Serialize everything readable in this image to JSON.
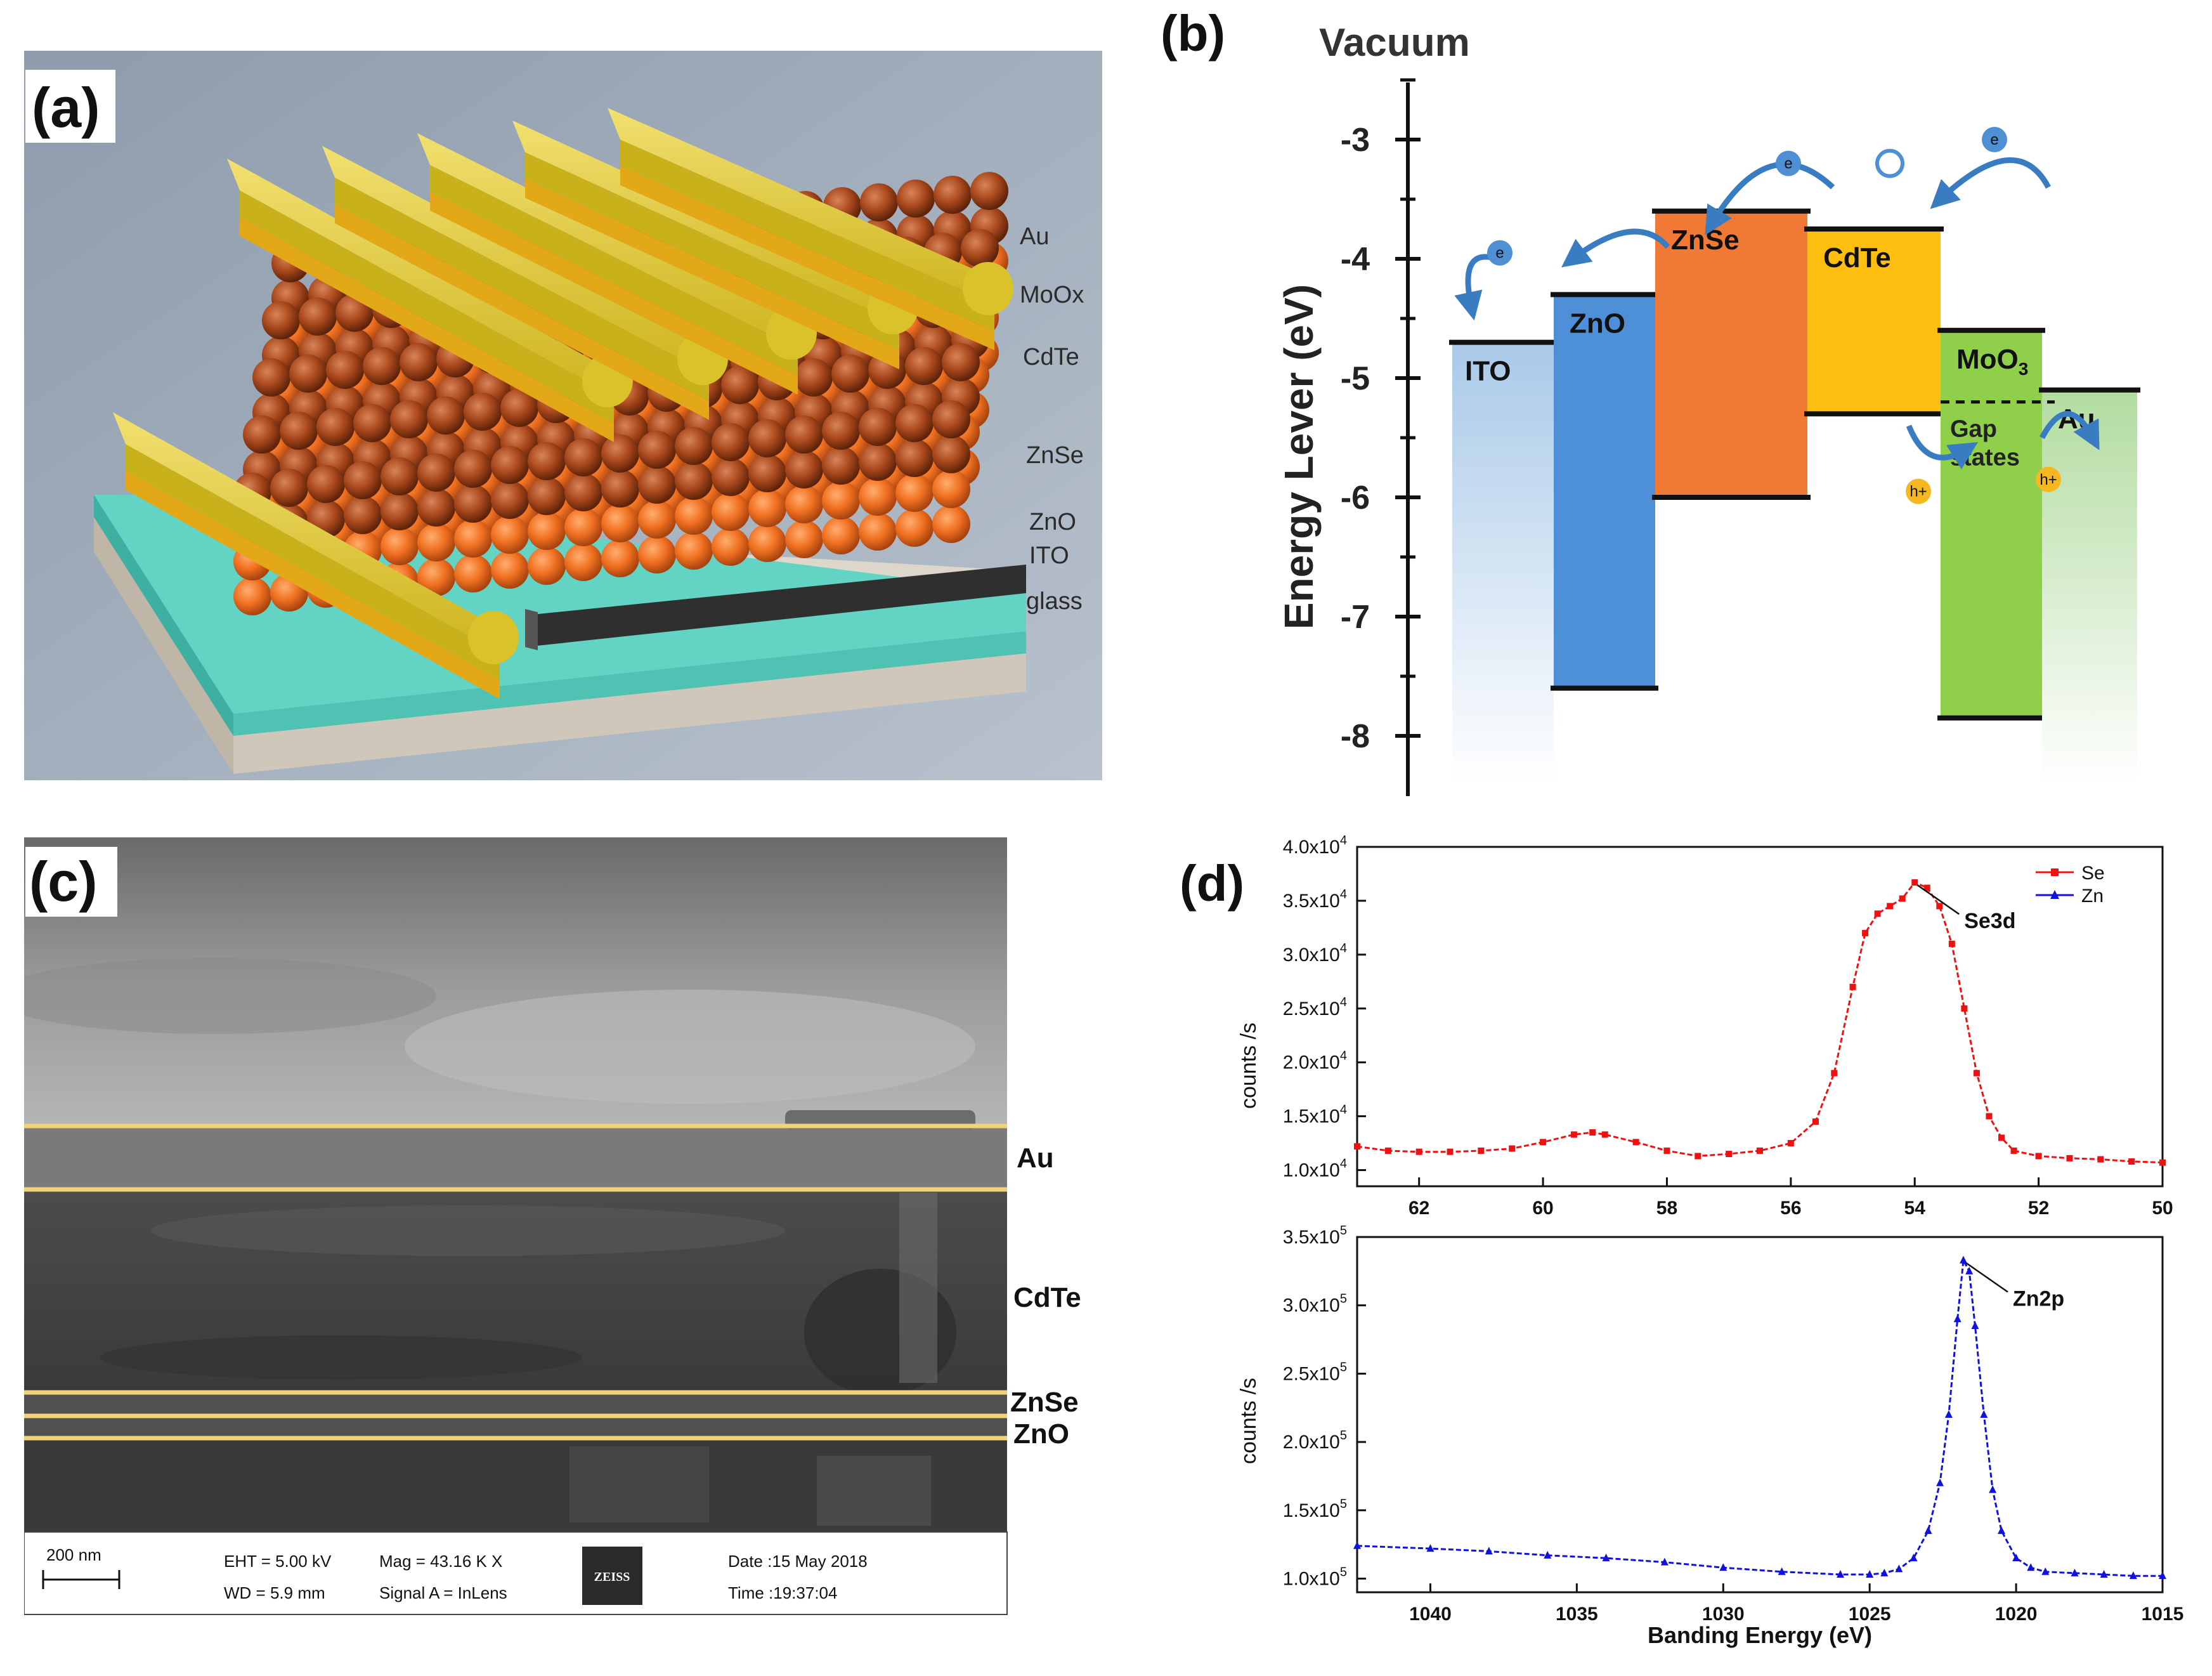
{
  "panel_a": {
    "label": "(a)",
    "layers": [
      "Au",
      "MoOx",
      "CdTe",
      "ZnSe",
      "ZnO",
      "ITO",
      "glass"
    ],
    "colors": {
      "au": "#d8c020",
      "moox": "#e0a818",
      "cdte": "#b04a18",
      "znse": "#f07020",
      "zno": "#333333",
      "ito": "#5fd0c0",
      "glass": "#d8d0c4",
      "bg": "#9aa7b6"
    }
  },
  "panel_b": {
    "label": "(b)",
    "title": "Vacuum",
    "ylabel": "Energy Lever (eV)",
    "ticks": [
      "-3",
      "-4",
      "-5",
      "-6",
      "-7",
      "-8"
    ],
    "bands": [
      {
        "name": "ITO",
        "top": -4.7,
        "bottom": -8.4,
        "color": "#c6dcef"
      },
      {
        "name": "ZnO",
        "top": -4.3,
        "bottom": -7.6,
        "color": "#4d90d8"
      },
      {
        "name": "ZnSe",
        "top": -3.6,
        "bottom": -6.0,
        "color": "#f07a35"
      },
      {
        "name": "CdTe",
        "top": -3.75,
        "bottom": -5.3,
        "color": "#ffbf10"
      },
      {
        "name": "MoO",
        "sub": "3",
        "top": -4.6,
        "bottom": -7.85,
        "color": "#8fcf4a"
      },
      {
        "name": "Au",
        "top": -5.1,
        "bottom": -8.4,
        "color": "#cfe8c6"
      }
    ],
    "gap_label_1": "Gap",
    "gap_label_2": "states",
    "electron_symbol": "e",
    "hole_symbol": "h+"
  },
  "panel_c": {
    "label": "(c)",
    "layer_labels": [
      "Au",
      "CdTe",
      "ZnSe",
      "ZnO"
    ],
    "scale_bar": "200 nm",
    "eht": "EHT = 5.00 kV",
    "wd": "WD = 5.9 mm",
    "mag": "Mag = 43.16 K X",
    "signal": "Signal A = InLens",
    "brand": "ZEISS",
    "date": "Date :15 May 2018",
    "time": "Time :19:37:04"
  },
  "panel_d": {
    "label": "(d)",
    "xlabel": "Banding Energy (eV)",
    "ylabel": "counts /s"
  },
  "chart_data": [
    {
      "type": "line",
      "title": "(d) top",
      "xlabel": "",
      "ylabel": "counts /s",
      "xlim": [
        63,
        50
      ],
      "xticks": [
        "62",
        "60",
        "58",
        "56",
        "54",
        "52",
        "50"
      ],
      "ylim": [
        8500,
        40000
      ],
      "yticks": [
        {
          "base": "1.0x10",
          "exp": "4",
          "value": 10000
        },
        {
          "base": "1.5x10",
          "exp": "4",
          "value": 15000
        },
        {
          "base": "2.0x10",
          "exp": "4",
          "value": 20000
        },
        {
          "base": "2.5x10",
          "exp": "4",
          "value": 25000
        },
        {
          "base": "3.0x10",
          "exp": "4",
          "value": 30000
        },
        {
          "base": "3.5x10",
          "exp": "4",
          "value": 35000
        },
        {
          "base": "4.0x10",
          "exp": "4",
          "value": 40000
        }
      ],
      "legend": [
        {
          "name": "Se",
          "color": "#ee1111",
          "marker": "square"
        },
        {
          "name": "Zn",
          "color": "#1111dd",
          "marker": "triangle"
        }
      ],
      "annotation": {
        "text": "Se3d",
        "x": 54.0,
        "y": 36700
      },
      "series": [
        {
          "name": "Se",
          "color": "#ee1111",
          "x": [
            63.0,
            62.5,
            62.0,
            61.5,
            61.0,
            60.5,
            60.0,
            59.5,
            59.2,
            59.0,
            58.5,
            58.0,
            57.5,
            57.0,
            56.5,
            56.0,
            55.6,
            55.3,
            55.0,
            54.8,
            54.6,
            54.4,
            54.2,
            54.0,
            53.8,
            53.6,
            53.4,
            53.2,
            53.0,
            52.8,
            52.6,
            52.4,
            52.0,
            51.5,
            51.0,
            50.5,
            50.0
          ],
          "y": [
            12200,
            11800,
            11700,
            11700,
            11800,
            12000,
            12600,
            13300,
            13500,
            13300,
            12600,
            11800,
            11300,
            11500,
            11800,
            12500,
            14500,
            19000,
            27000,
            32000,
            33800,
            34500,
            35200,
            36700,
            36200,
            34500,
            31000,
            25000,
            19000,
            15000,
            13000,
            11800,
            11300,
            11100,
            11000,
            10800,
            10700
          ]
        }
      ]
    },
    {
      "type": "line",
      "title": "(d) bottom",
      "xlabel": "Banding Energy (eV)",
      "ylabel": "counts /s",
      "xlim": [
        1042.5,
        1015
      ],
      "xticks": [
        "1040",
        "1035",
        "1030",
        "1025",
        "1020",
        "1015"
      ],
      "ylim": [
        90000,
        350000
      ],
      "yticks": [
        {
          "base": "1.0x10",
          "exp": "5",
          "value": 100000
        },
        {
          "base": "1.5x10",
          "exp": "5",
          "value": 150000
        },
        {
          "base": "2.0x10",
          "exp": "5",
          "value": 200000
        },
        {
          "base": "2.5x10",
          "exp": "5",
          "value": 250000
        },
        {
          "base": "3.0x10",
          "exp": "5",
          "value": 300000
        },
        {
          "base": "3.5x10",
          "exp": "5",
          "value": 350000
        }
      ],
      "annotation": {
        "text": "Zn2p",
        "x": 1021.8,
        "y": 333000
      },
      "series": [
        {
          "name": "Zn",
          "color": "#1111dd",
          "x": [
            1042.5,
            1040,
            1038,
            1036,
            1034,
            1032,
            1030,
            1028,
            1026,
            1025,
            1024.5,
            1024,
            1023.5,
            1023,
            1022.6,
            1022.3,
            1022.0,
            1021.8,
            1021.6,
            1021.4,
            1021.1,
            1020.8,
            1020.5,
            1020,
            1019.5,
            1019,
            1018,
            1017,
            1016,
            1015
          ],
          "y": [
            124000,
            122000,
            120000,
            117000,
            115000,
            112000,
            108000,
            105000,
            103000,
            103000,
            104000,
            107000,
            115000,
            135000,
            170000,
            220000,
            290000,
            333000,
            325000,
            285000,
            220000,
            165000,
            135000,
            115000,
            108000,
            105000,
            104000,
            103000,
            102000,
            102000
          ]
        }
      ]
    }
  ]
}
